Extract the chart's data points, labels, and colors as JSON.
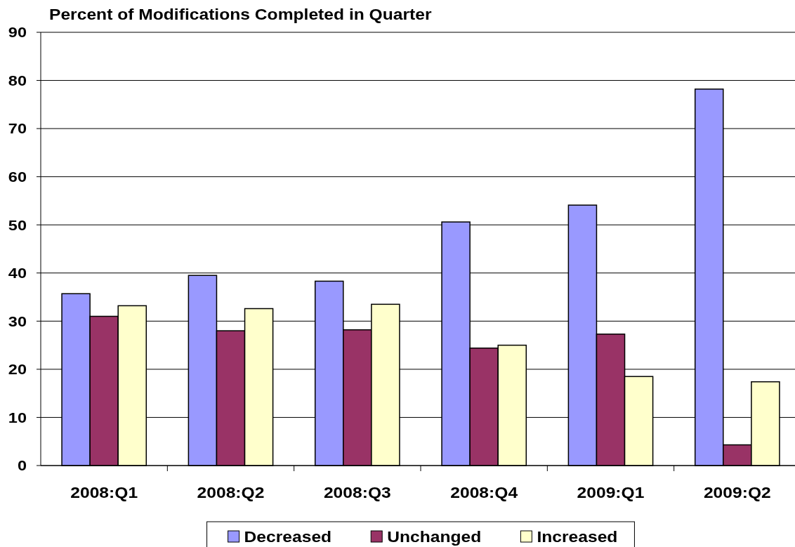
{
  "chart_data": {
    "type": "bar",
    "title": "Percent of Modifications Completed in Quarter",
    "categories": [
      "2008:Q1",
      "2008:Q2",
      "2008:Q3",
      "2008:Q4",
      "2009:Q1",
      "2009:Q2"
    ],
    "series": [
      {
        "name": "Decreased",
        "color": "#9999ff",
        "values": [
          35.7,
          39.5,
          38.3,
          50.6,
          54.1,
          78.2
        ]
      },
      {
        "name": "Unchanged",
        "color": "#993366",
        "values": [
          31.0,
          28.0,
          28.2,
          24.4,
          27.3,
          4.3
        ]
      },
      {
        "name": "Increased",
        "color": "#ffffcc",
        "values": [
          33.2,
          32.6,
          33.5,
          25.0,
          18.5,
          17.4
        ]
      }
    ],
    "ylim": [
      0,
      90
    ],
    "yticks": [
      0,
      10,
      20,
      30,
      40,
      50,
      60,
      70,
      80,
      90
    ],
    "grid": "y",
    "legend": "bottom"
  }
}
